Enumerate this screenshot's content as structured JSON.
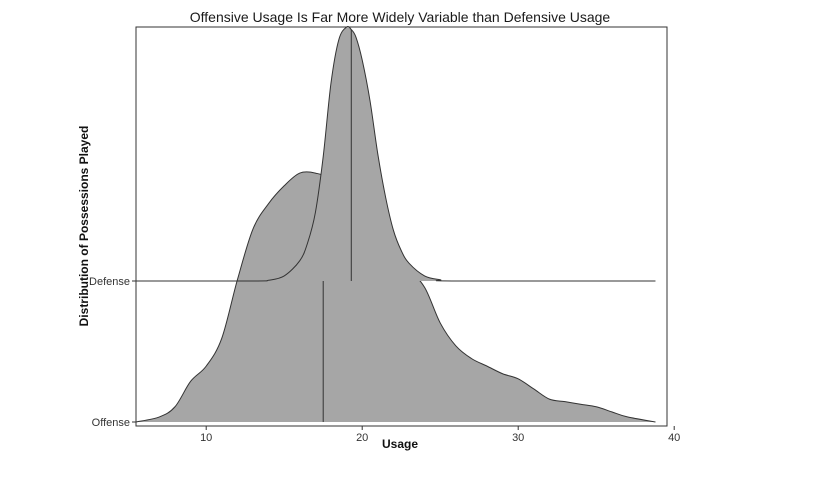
{
  "chart_data": {
    "type": "area",
    "subtype": "ridgeline",
    "title": "Offensive Usage Is Far More Widely Variable than Defensive Usage",
    "xlabel": "Usage",
    "ylabel": "Distribution of Possessions Played",
    "xlim": [
      5.5,
      38.8
    ],
    "x_ticks": [
      10,
      20,
      30,
      40
    ],
    "grid": false,
    "legend": "none",
    "fill_color": "#a6a6a6",
    "line_color": "#333333",
    "categories": [
      "Offense",
      "Defense"
    ],
    "series": [
      {
        "name": "Offense",
        "median": 17.5,
        "x": [
          5.5,
          7,
          8,
          9,
          10,
          11,
          12,
          13,
          14,
          15,
          16,
          17,
          18,
          19,
          20,
          21,
          22,
          23,
          24,
          25,
          26,
          27,
          28,
          29,
          30,
          31,
          32,
          33,
          34,
          35,
          36,
          37,
          38.8
        ],
        "density": [
          0.0,
          0.02,
          0.06,
          0.16,
          0.22,
          0.33,
          0.56,
          0.76,
          0.86,
          0.93,
          0.98,
          0.98,
          0.95,
          0.84,
          0.73,
          0.66,
          0.58,
          0.59,
          0.53,
          0.39,
          0.3,
          0.25,
          0.22,
          0.19,
          0.17,
          0.13,
          0.09,
          0.08,
          0.07,
          0.06,
          0.04,
          0.02,
          0.0
        ]
      },
      {
        "name": "Defense",
        "median": 19.3,
        "x": [
          5.5,
          13,
          14,
          15,
          16,
          16.5,
          17,
          17.5,
          18,
          18.5,
          19,
          19.3,
          19.6,
          20,
          20.5,
          21,
          21.5,
          22,
          22.5,
          23,
          24,
          25,
          26,
          38.8
        ],
        "density": [
          0.0,
          0.0,
          0.003,
          0.02,
          0.08,
          0.15,
          0.27,
          0.49,
          0.78,
          0.95,
          1.0,
          0.99,
          0.96,
          0.87,
          0.71,
          0.5,
          0.33,
          0.2,
          0.12,
          0.07,
          0.02,
          0.005,
          0.0,
          0.0
        ]
      }
    ]
  }
}
